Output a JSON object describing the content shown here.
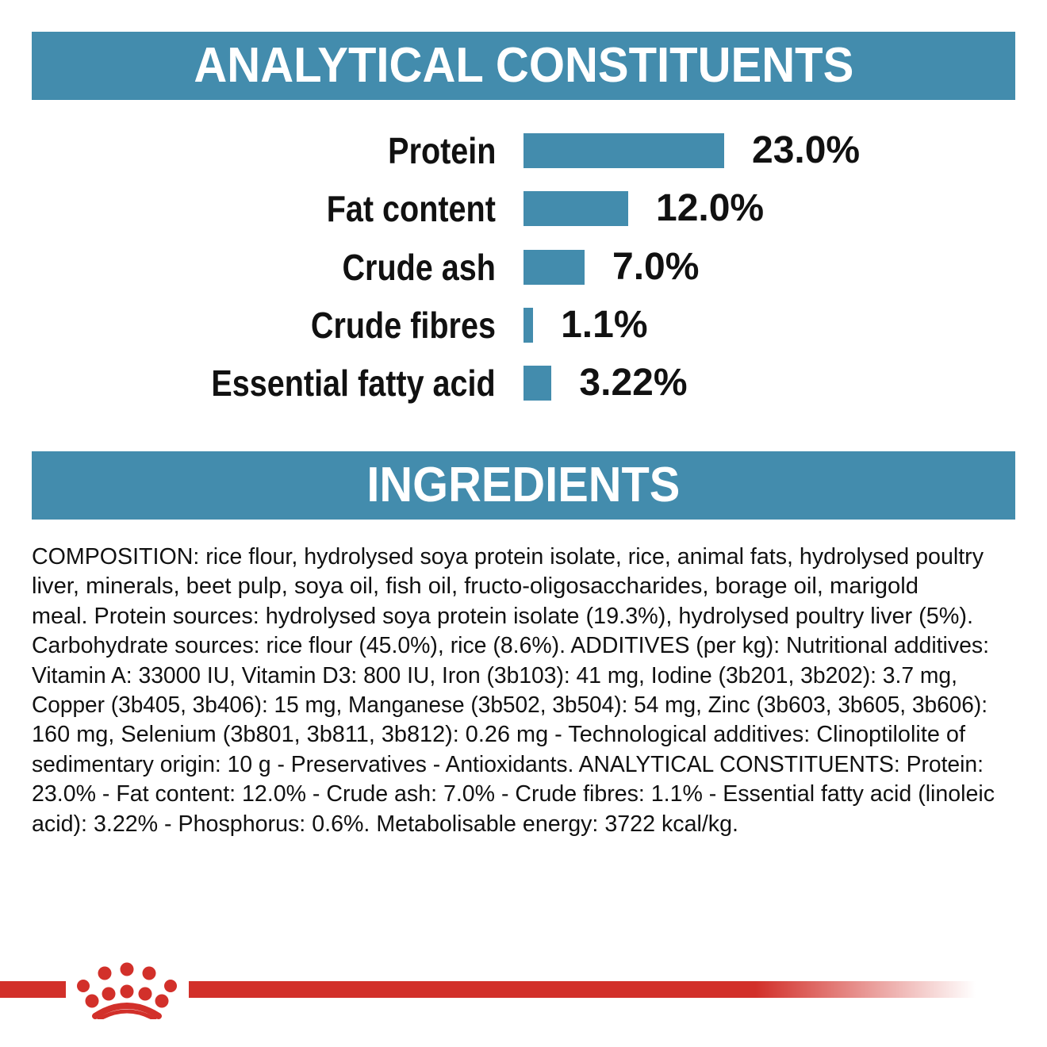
{
  "sections": {
    "analytical_title": "ANALYTICAL CONSTITUENTS",
    "ingredients_title": "INGREDIENTS"
  },
  "chart_data": {
    "type": "bar",
    "orientation": "horizontal",
    "title": "ANALYTICAL CONSTITUENTS",
    "categories": [
      "Protein",
      "Fat content",
      "Crude ash",
      "Crude fibres",
      "Essential fatty acid"
    ],
    "values": [
      23.0,
      12.0,
      7.0,
      1.1,
      3.22
    ],
    "data_labels": [
      "23.0%",
      "12.0%",
      "7.0%",
      "1.1%",
      "3.22%"
    ],
    "unit": "%",
    "grid": false,
    "bar_color": "#438cad"
  },
  "ingredients": {
    "lines": [
      "COMPOSITION: rice flour, hydrolysed soya protein isolate, rice, animal fats, hydrolysed poultry",
      "liver, minerals, beet pulp, soya oil, fish oil, fructo-oligosaccharides, borage oil, marigold",
      "meal. Protein sources: hydrolysed soya protein isolate (19.3%), hydrolysed poultry liver (5%).",
      "Carbohydrate sources: rice flour (45.0%), rice (8.6%). ADDITIVES (per kg): Nutritional additives:",
      "Vitamin A: 33000 IU, Vitamin D3: 800 IU, Iron (3b103): 41 mg, Iodine (3b201, 3b202): 3.7 mg,",
      "Copper (3b405, 3b406): 15 mg, Manganese (3b502, 3b504): 54 mg, Zinc (3b603, 3b605, 3b606):",
      "160 mg, Selenium (3b801, 3b811, 3b812): 0.26 mg - Technological additives: Clinoptilolite of",
      "sedimentary origin: 10 g - Preservatives - Antioxidants. ANALYTICAL CONSTITUENTS: Protein:",
      "23.0% - Fat content: 12.0% - Crude ash: 7.0% - Crude fibres: 1.1% - Essential fatty acid (linoleic",
      "acid): 3.22% - Phosphorus: 0.6%. Metabolisable energy: 3722 kcal/kg."
    ]
  },
  "brand": {
    "logo": "royal-canin-crown",
    "accent_color": "#d2302a"
  }
}
